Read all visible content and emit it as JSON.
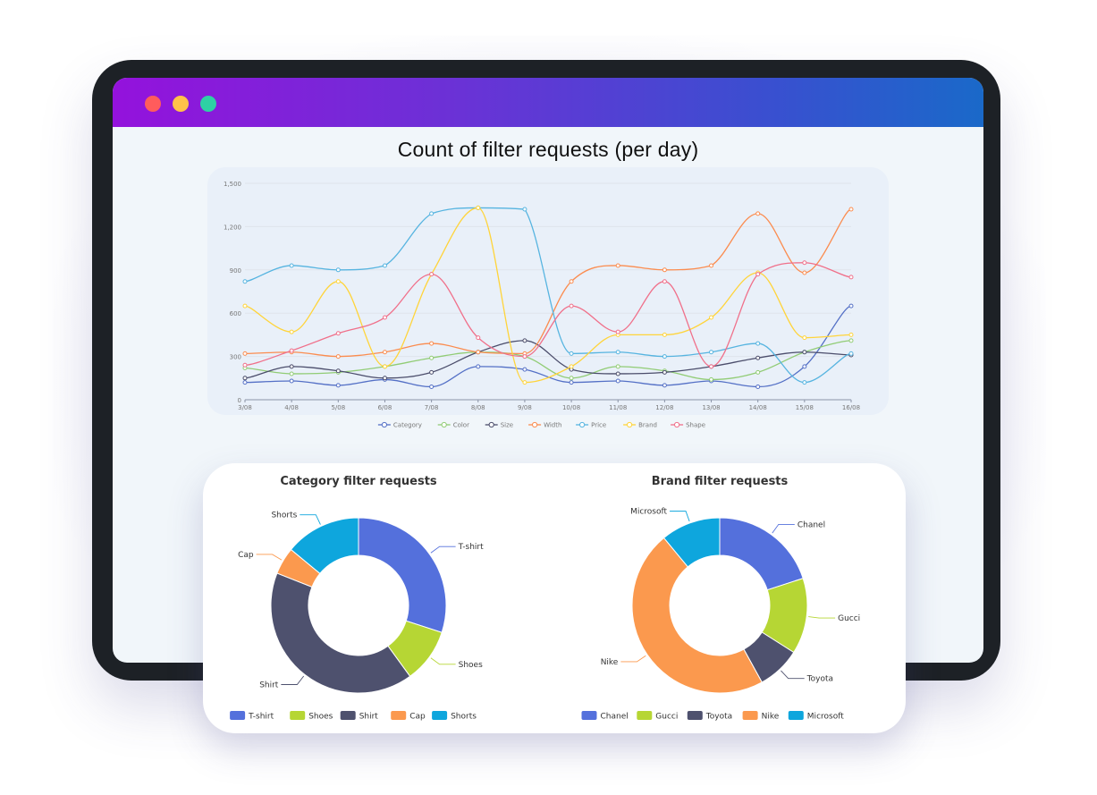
{
  "window": {
    "dots": [
      "red",
      "yellow",
      "green"
    ],
    "colors": {
      "red": "#ff5c5c",
      "yellow": "#ffc14a",
      "green": "#2ed1a4"
    }
  },
  "main_title": "Count of filter requests (per day)",
  "chart_data": [
    {
      "type": "line",
      "title": "Count of filter requests (per day)",
      "categories": [
        "3/08",
        "4/08",
        "5/08",
        "6/08",
        "7/08",
        "8/08",
        "9/08",
        "10/08",
        "11/08",
        "12/08",
        "13/08",
        "14/08",
        "15/08",
        "16/08"
      ],
      "ylim": [
        0,
        1500
      ],
      "yticks": [
        "0",
        "300",
        "600",
        "900",
        "1,200",
        "1,500"
      ],
      "yticks_values": [
        0,
        300,
        600,
        900,
        1200,
        1500
      ],
      "grid": true,
      "legend_position": "bottom",
      "series": [
        {
          "name": "Category",
          "color": "#5470c6",
          "values": [
            120,
            130,
            100,
            140,
            90,
            230,
            210,
            120,
            130,
            100,
            130,
            90,
            230,
            650
          ]
        },
        {
          "name": "Color",
          "color": "#91cc75",
          "values": [
            220,
            180,
            190,
            230,
            290,
            330,
            300,
            150,
            230,
            200,
            140,
            190,
            330,
            410
          ]
        },
        {
          "name": "Size",
          "color": "#4b4d6b",
          "values": [
            150,
            230,
            200,
            150,
            190,
            330,
            410,
            210,
            180,
            190,
            230,
            290,
            330,
            310
          ]
        },
        {
          "name": "Width",
          "color": "#fb8c4f",
          "values": [
            320,
            330,
            300,
            330,
            390,
            330,
            320,
            820,
            930,
            900,
            930,
            1290,
            880,
            1320
          ]
        },
        {
          "name": "Price",
          "color": "#56b4e0",
          "values": [
            820,
            930,
            900,
            930,
            1290,
            1330,
            1320,
            320,
            330,
            300,
            330,
            390,
            120,
            320
          ]
        },
        {
          "name": "Brand",
          "color": "#ffd43a",
          "values": [
            650,
            470,
            820,
            230,
            870,
            1330,
            120,
            230,
            450,
            450,
            570,
            880,
            430,
            450
          ]
        },
        {
          "name": "Shape",
          "color": "#f0708a",
          "values": [
            240,
            340,
            460,
            570,
            870,
            430,
            300,
            650,
            470,
            820,
            230,
            870,
            950,
            850
          ]
        }
      ]
    },
    {
      "type": "pie",
      "title": "Category filter requests",
      "legend_position": "bottom",
      "slices": [
        {
          "name": "T-shirt",
          "value": 30,
          "color": "#5470dc"
        },
        {
          "name": "Shoes",
          "value": 10,
          "color": "#b6d634"
        },
        {
          "name": "Shirt",
          "value": 41,
          "color": "#4e516e"
        },
        {
          "name": "Cap",
          "value": 5,
          "color": "#fb994e"
        },
        {
          "name": "Shorts",
          "value": 14,
          "color": "#0ea6dd"
        }
      ]
    },
    {
      "type": "pie",
      "title": "Brand filter requests",
      "legend_position": "bottom",
      "slices": [
        {
          "name": "Chanel",
          "value": 20,
          "color": "#5470dc"
        },
        {
          "name": "Gucci",
          "value": 14,
          "color": "#b6d634"
        },
        {
          "name": "Toyota",
          "value": 8,
          "color": "#4e516e"
        },
        {
          "name": "Nike",
          "value": 47,
          "color": "#fb994e"
        },
        {
          "name": "Microsoft",
          "value": 11,
          "color": "#0ea6dd"
        }
      ]
    }
  ]
}
